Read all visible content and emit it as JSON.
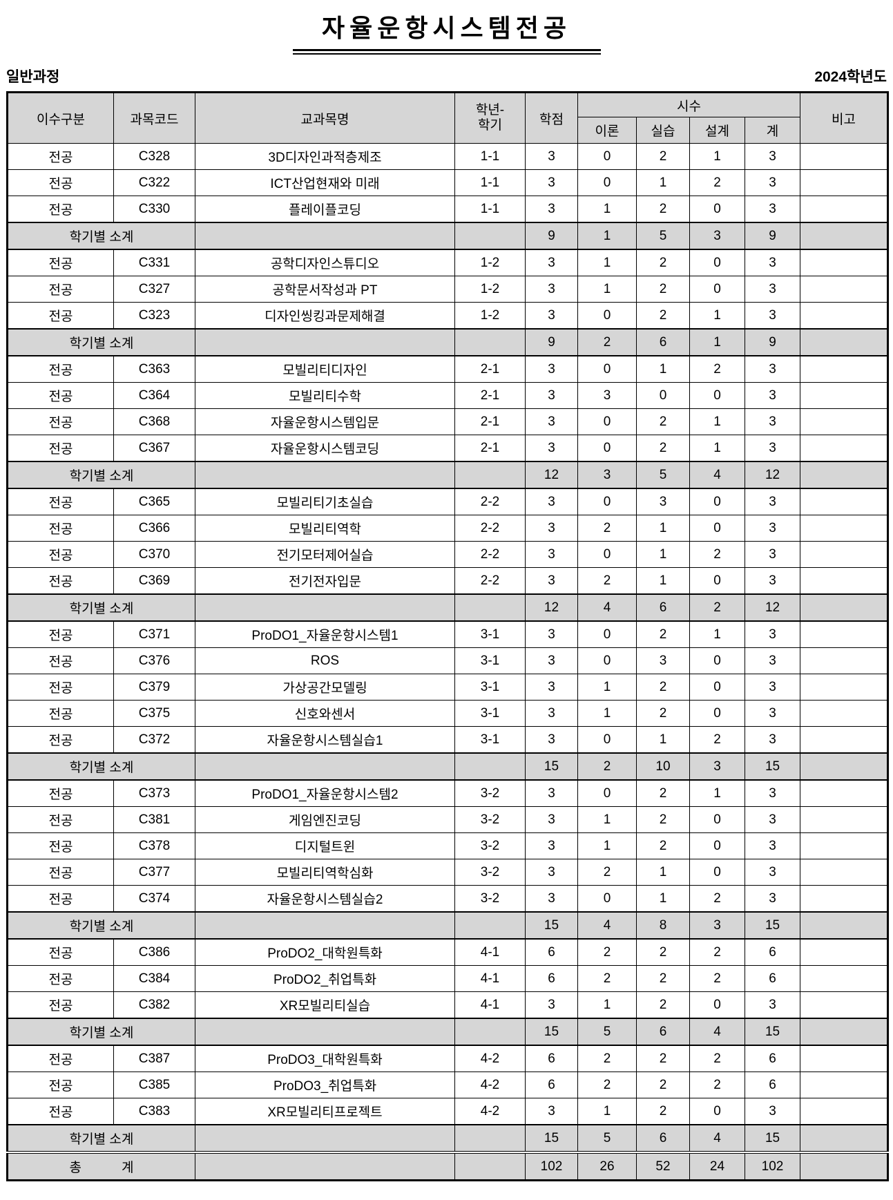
{
  "page": {
    "title": "자율운항시스템전공",
    "course_type": "일반과정",
    "academic_year": "2024학년도"
  },
  "table": {
    "headers": {
      "category": "이수구분",
      "code": "과목코드",
      "name": "교과목명",
      "semester_line1": "학년-",
      "semester_line2": "학기",
      "credits": "학점",
      "hours_group": "시수",
      "theory": "이론",
      "practice": "실습",
      "design": "설계",
      "total": "계",
      "remarks": "비고"
    },
    "labels": {
      "subtotal": "학기별 소계",
      "grand_total_left": "총",
      "grand_total_right": "계"
    },
    "rows": [
      {
        "type": "course",
        "category": "전공",
        "code": "C328",
        "name": "3D디자인과적층제조",
        "semester": "1-1",
        "credits": "3",
        "theory": "0",
        "practice": "2",
        "design": "1",
        "total": "3",
        "remarks": ""
      },
      {
        "type": "course",
        "category": "전공",
        "code": "C322",
        "name": "ICT산업현재와 미래",
        "semester": "1-1",
        "credits": "3",
        "theory": "0",
        "practice": "1",
        "design": "2",
        "total": "3",
        "remarks": ""
      },
      {
        "type": "course",
        "category": "전공",
        "code": "C330",
        "name": "플레이플코딩",
        "semester": "1-1",
        "credits": "3",
        "theory": "1",
        "practice": "2",
        "design": "0",
        "total": "3",
        "remarks": ""
      },
      {
        "type": "subtotal",
        "credits": "9",
        "theory": "1",
        "practice": "5",
        "design": "3",
        "total": "9",
        "remarks": ""
      },
      {
        "type": "course",
        "category": "전공",
        "code": "C331",
        "name": "공학디자인스튜디오",
        "semester": "1-2",
        "credits": "3",
        "theory": "1",
        "practice": "2",
        "design": "0",
        "total": "3",
        "remarks": ""
      },
      {
        "type": "course",
        "category": "전공",
        "code": "C327",
        "name": "공학문서작성과 PT",
        "semester": "1-2",
        "credits": "3",
        "theory": "1",
        "practice": "2",
        "design": "0",
        "total": "3",
        "remarks": ""
      },
      {
        "type": "course",
        "category": "전공",
        "code": "C323",
        "name": "디자인씽킹과문제해결",
        "semester": "1-2",
        "credits": "3",
        "theory": "0",
        "practice": "2",
        "design": "1",
        "total": "3",
        "remarks": ""
      },
      {
        "type": "subtotal",
        "credits": "9",
        "theory": "2",
        "practice": "6",
        "design": "1",
        "total": "9",
        "remarks": ""
      },
      {
        "type": "course",
        "category": "전공",
        "code": "C363",
        "name": "모빌리티디자인",
        "semester": "2-1",
        "credits": "3",
        "theory": "0",
        "practice": "1",
        "design": "2",
        "total": "3",
        "remarks": ""
      },
      {
        "type": "course",
        "category": "전공",
        "code": "C364",
        "name": "모빌리티수학",
        "semester": "2-1",
        "credits": "3",
        "theory": "3",
        "practice": "0",
        "design": "0",
        "total": "3",
        "remarks": ""
      },
      {
        "type": "course",
        "category": "전공",
        "code": "C368",
        "name": "자율운항시스템입문",
        "semester": "2-1",
        "credits": "3",
        "theory": "0",
        "practice": "2",
        "design": "1",
        "total": "3",
        "remarks": ""
      },
      {
        "type": "course",
        "category": "전공",
        "code": "C367",
        "name": "자율운항시스템코딩",
        "semester": "2-1",
        "credits": "3",
        "theory": "0",
        "practice": "2",
        "design": "1",
        "total": "3",
        "remarks": ""
      },
      {
        "type": "subtotal",
        "credits": "12",
        "theory": "3",
        "practice": "5",
        "design": "4",
        "total": "12",
        "remarks": ""
      },
      {
        "type": "course",
        "category": "전공",
        "code": "C365",
        "name": "모빌리티기초실습",
        "semester": "2-2",
        "credits": "3",
        "theory": "0",
        "practice": "3",
        "design": "0",
        "total": "3",
        "remarks": ""
      },
      {
        "type": "course",
        "category": "전공",
        "code": "C366",
        "name": "모빌리티역학",
        "semester": "2-2",
        "credits": "3",
        "theory": "2",
        "practice": "1",
        "design": "0",
        "total": "3",
        "remarks": ""
      },
      {
        "type": "course",
        "category": "전공",
        "code": "C370",
        "name": "전기모터제어실습",
        "semester": "2-2",
        "credits": "3",
        "theory": "0",
        "practice": "1",
        "design": "2",
        "total": "3",
        "remarks": ""
      },
      {
        "type": "course",
        "category": "전공",
        "code": "C369",
        "name": "전기전자입문",
        "semester": "2-2",
        "credits": "3",
        "theory": "2",
        "practice": "1",
        "design": "0",
        "total": "3",
        "remarks": ""
      },
      {
        "type": "subtotal",
        "credits": "12",
        "theory": "4",
        "practice": "6",
        "design": "2",
        "total": "12",
        "remarks": ""
      },
      {
        "type": "course",
        "category": "전공",
        "code": "C371",
        "name": "ProDO1_자율운항시스템1",
        "semester": "3-1",
        "credits": "3",
        "theory": "0",
        "practice": "2",
        "design": "1",
        "total": "3",
        "remarks": ""
      },
      {
        "type": "course",
        "category": "전공",
        "code": "C376",
        "name": "ROS",
        "semester": "3-1",
        "credits": "3",
        "theory": "0",
        "practice": "3",
        "design": "0",
        "total": "3",
        "remarks": ""
      },
      {
        "type": "course",
        "category": "전공",
        "code": "C379",
        "name": "가상공간모델링",
        "semester": "3-1",
        "credits": "3",
        "theory": "1",
        "practice": "2",
        "design": "0",
        "total": "3",
        "remarks": ""
      },
      {
        "type": "course",
        "category": "전공",
        "code": "C375",
        "name": "신호와센서",
        "semester": "3-1",
        "credits": "3",
        "theory": "1",
        "practice": "2",
        "design": "0",
        "total": "3",
        "remarks": ""
      },
      {
        "type": "course",
        "category": "전공",
        "code": "C372",
        "name": "자율운항시스템실습1",
        "semester": "3-1",
        "credits": "3",
        "theory": "0",
        "practice": "1",
        "design": "2",
        "total": "3",
        "remarks": ""
      },
      {
        "type": "subtotal",
        "credits": "15",
        "theory": "2",
        "practice": "10",
        "design": "3",
        "total": "15",
        "remarks": ""
      },
      {
        "type": "course",
        "category": "전공",
        "code": "C373",
        "name": "ProDO1_자율운항시스템2",
        "semester": "3-2",
        "credits": "3",
        "theory": "0",
        "practice": "2",
        "design": "1",
        "total": "3",
        "remarks": ""
      },
      {
        "type": "course",
        "category": "전공",
        "code": "C381",
        "name": "게임엔진코딩",
        "semester": "3-2",
        "credits": "3",
        "theory": "1",
        "practice": "2",
        "design": "0",
        "total": "3",
        "remarks": ""
      },
      {
        "type": "course",
        "category": "전공",
        "code": "C378",
        "name": "디지털트윈",
        "semester": "3-2",
        "credits": "3",
        "theory": "1",
        "practice": "2",
        "design": "0",
        "total": "3",
        "remarks": ""
      },
      {
        "type": "course",
        "category": "전공",
        "code": "C377",
        "name": "모빌리티역학심화",
        "semester": "3-2",
        "credits": "3",
        "theory": "2",
        "practice": "1",
        "design": "0",
        "total": "3",
        "remarks": ""
      },
      {
        "type": "course",
        "category": "전공",
        "code": "C374",
        "name": "자율운항시스템실습2",
        "semester": "3-2",
        "credits": "3",
        "theory": "0",
        "practice": "1",
        "design": "2",
        "total": "3",
        "remarks": ""
      },
      {
        "type": "subtotal",
        "credits": "15",
        "theory": "4",
        "practice": "8",
        "design": "3",
        "total": "15",
        "remarks": ""
      },
      {
        "type": "course",
        "category": "전공",
        "code": "C386",
        "name": "ProDO2_대학원특화",
        "semester": "4-1",
        "credits": "6",
        "theory": "2",
        "practice": "2",
        "design": "2",
        "total": "6",
        "remarks": ""
      },
      {
        "type": "course",
        "category": "전공",
        "code": "C384",
        "name": "ProDO2_취업특화",
        "semester": "4-1",
        "credits": "6",
        "theory": "2",
        "practice": "2",
        "design": "2",
        "total": "6",
        "remarks": ""
      },
      {
        "type": "course",
        "category": "전공",
        "code": "C382",
        "name": "XR모빌리티실습",
        "semester": "4-1",
        "credits": "3",
        "theory": "1",
        "practice": "2",
        "design": "0",
        "total": "3",
        "remarks": ""
      },
      {
        "type": "subtotal",
        "credits": "15",
        "theory": "5",
        "practice": "6",
        "design": "4",
        "total": "15",
        "remarks": ""
      },
      {
        "type": "course",
        "category": "전공",
        "code": "C387",
        "name": "ProDO3_대학원특화",
        "semester": "4-2",
        "credits": "6",
        "theory": "2",
        "practice": "2",
        "design": "2",
        "total": "6",
        "remarks": ""
      },
      {
        "type": "course",
        "category": "전공",
        "code": "C385",
        "name": "ProDO3_취업특화",
        "semester": "4-2",
        "credits": "6",
        "theory": "2",
        "practice": "2",
        "design": "2",
        "total": "6",
        "remarks": ""
      },
      {
        "type": "course",
        "category": "전공",
        "code": "C383",
        "name": "XR모빌리티프로젝트",
        "semester": "4-2",
        "credits": "3",
        "theory": "1",
        "practice": "2",
        "design": "0",
        "total": "3",
        "remarks": ""
      },
      {
        "type": "subtotal",
        "credits": "15",
        "theory": "5",
        "practice": "6",
        "design": "4",
        "total": "15",
        "remarks": ""
      },
      {
        "type": "total",
        "credits": "102",
        "theory": "26",
        "practice": "52",
        "design": "24",
        "total": "102",
        "remarks": ""
      }
    ]
  }
}
